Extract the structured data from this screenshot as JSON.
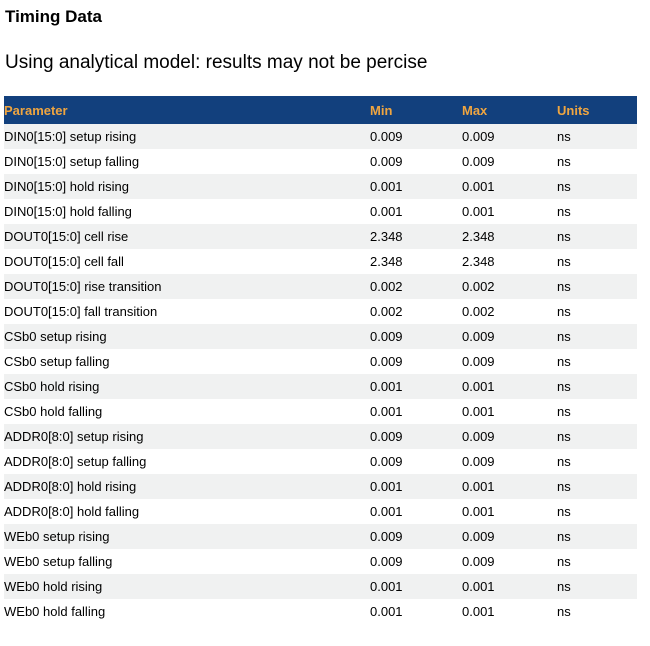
{
  "page": {
    "title": "Timing Data",
    "subtitle": "Using analytical model: results may not be percise"
  },
  "table": {
    "columns": [
      "Parameter",
      "Min",
      "Max",
      "Units"
    ],
    "rows": [
      {
        "parameter": "DIN0[15:0] setup rising",
        "min": "0.009",
        "max": "0.009",
        "units": "ns"
      },
      {
        "parameter": "DIN0[15:0] setup falling",
        "min": "0.009",
        "max": "0.009",
        "units": "ns"
      },
      {
        "parameter": "DIN0[15:0] hold rising",
        "min": "0.001",
        "max": "0.001",
        "units": "ns"
      },
      {
        "parameter": "DIN0[15:0] hold falling",
        "min": "0.001",
        "max": "0.001",
        "units": "ns"
      },
      {
        "parameter": "DOUT0[15:0] cell rise",
        "min": "2.348",
        "max": "2.348",
        "units": "ns"
      },
      {
        "parameter": "DOUT0[15:0] cell fall",
        "min": "2.348",
        "max": "2.348",
        "units": "ns"
      },
      {
        "parameter": "DOUT0[15:0] rise transition",
        "min": "0.002",
        "max": "0.002",
        "units": "ns"
      },
      {
        "parameter": "DOUT0[15:0] fall transition",
        "min": "0.002",
        "max": "0.002",
        "units": "ns"
      },
      {
        "parameter": "CSb0 setup rising",
        "min": "0.009",
        "max": "0.009",
        "units": "ns"
      },
      {
        "parameter": "CSb0 setup falling",
        "min": "0.009",
        "max": "0.009",
        "units": "ns"
      },
      {
        "parameter": "CSb0 hold rising",
        "min": "0.001",
        "max": "0.001",
        "units": "ns"
      },
      {
        "parameter": "CSb0 hold falling",
        "min": "0.001",
        "max": "0.001",
        "units": "ns"
      },
      {
        "parameter": "ADDR0[8:0] setup rising",
        "min": "0.009",
        "max": "0.009",
        "units": "ns"
      },
      {
        "parameter": "ADDR0[8:0] setup falling",
        "min": "0.009",
        "max": "0.009",
        "units": "ns"
      },
      {
        "parameter": "ADDR0[8:0] hold rising",
        "min": "0.001",
        "max": "0.001",
        "units": "ns"
      },
      {
        "parameter": "ADDR0[8:0] hold falling",
        "min": "0.001",
        "max": "0.001",
        "units": "ns"
      },
      {
        "parameter": "WEb0 setup rising",
        "min": "0.009",
        "max": "0.009",
        "units": "ns"
      },
      {
        "parameter": "WEb0 setup falling",
        "min": "0.009",
        "max": "0.009",
        "units": "ns"
      },
      {
        "parameter": "WEb0 hold rising",
        "min": "0.001",
        "max": "0.001",
        "units": "ns"
      },
      {
        "parameter": "WEb0 hold falling",
        "min": "0.001",
        "max": "0.001",
        "units": "ns"
      }
    ]
  },
  "colors": {
    "header_bg": "#12407D",
    "header_text": "#EFA540",
    "row_alt_bg": "#F0F1F1",
    "text": "#000000",
    "page_bg": "#FFFFFF"
  }
}
